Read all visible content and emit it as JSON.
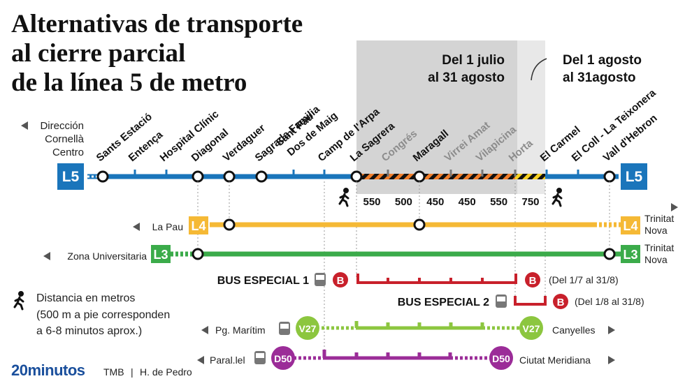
{
  "title": [
    "Alternativas de transporte",
    "al cierre parcial",
    "de la línea 5 de metro"
  ],
  "period1": [
    "Del 1 julio",
    "al 31 agosto"
  ],
  "period2": [
    "Del 1 agosto",
    "al 31agosto"
  ],
  "direction": [
    "Dirección",
    "Cornellà",
    "Centro"
  ],
  "stations": [
    "Sants Estació",
    "Entença",
    "Hospital Clínic",
    "Diagonal",
    "Verdaguer",
    "Sagrada Familia",
    "Sant Pau",
    "Dos de Maig",
    "Camp de l'Arpa",
    "La Sagrera",
    "Congrés",
    "Maragall",
    "Virrei Amat",
    "Vilapicina",
    "Horta",
    "El Carmel",
    "El Coll - La Teixonera",
    "Vall d'Hebron"
  ],
  "l5": "L5",
  "distances": [
    "550",
    "500",
    "450",
    "450",
    "550",
    "750"
  ],
  "l4": {
    "from": "La Pau",
    "badge": "L4",
    "to": [
      "Trinitat",
      "Nova"
    ]
  },
  "l3": {
    "from": "Zona Universitaria",
    "badge": "L3",
    "to": [
      "Trinitat",
      "Nova"
    ]
  },
  "bus1": {
    "label": "BUS ESPECIAL 1",
    "badge": "B",
    "dates": "(Del 1/7 al 31/8)"
  },
  "bus2": {
    "label": "BUS ESPECIAL 2",
    "badge": "B",
    "dates": "(Del 1/8 al 31/8)"
  },
  "v27": {
    "from": "Pg. Marítim",
    "badge": "V27",
    "to": "Canyelles"
  },
  "d50": {
    "from": "Paral.lel",
    "badge": "D50",
    "to": "Ciutat Meridiana"
  },
  "legend": [
    "Distancia en metros",
    "(500 m a pie corresponden",
    "a 6-8 minutos aprox.)"
  ],
  "footer": {
    "brand": "20minutos",
    "source": "TMB",
    "author": "H. de Pedro"
  }
}
